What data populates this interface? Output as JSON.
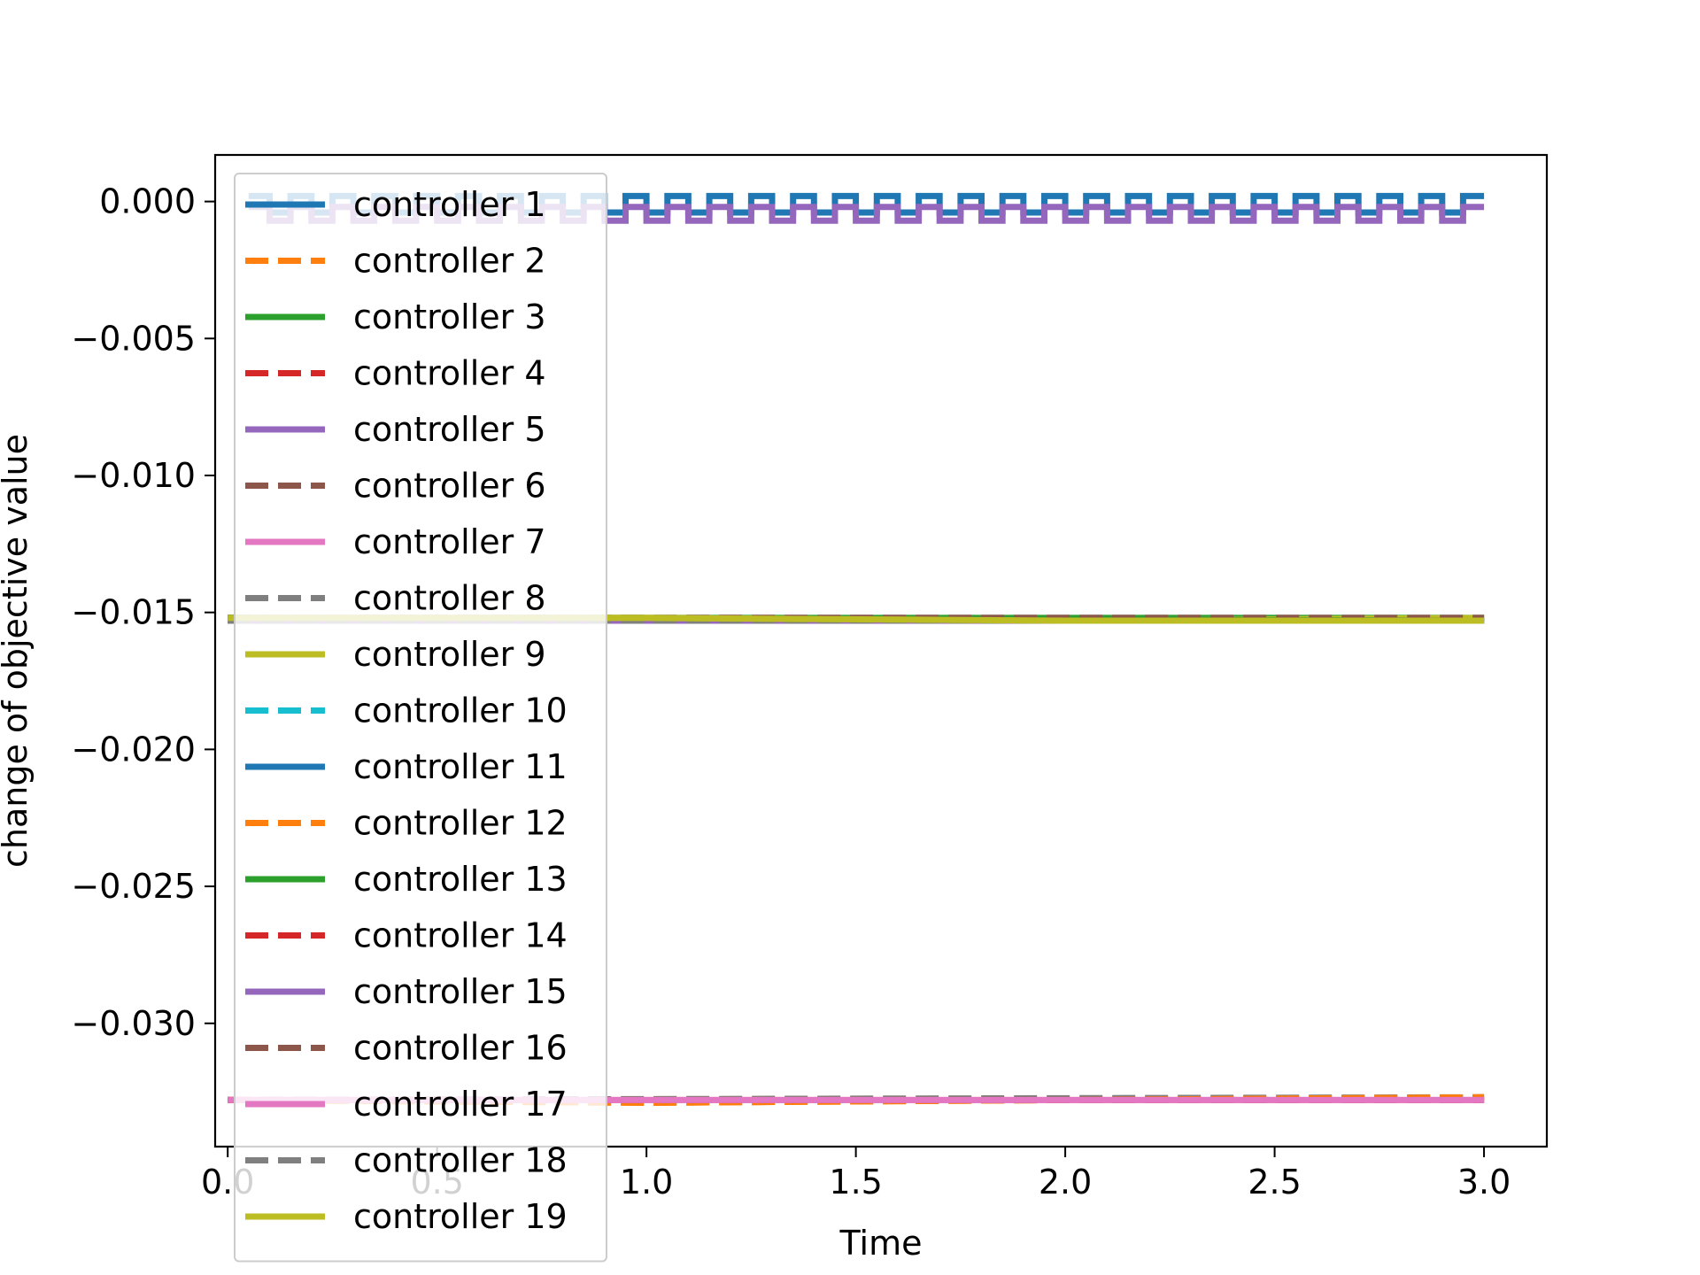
{
  "chart_data": {
    "type": "line",
    "title": "",
    "xlabel": "Time",
    "ylabel": "change of objective value",
    "xlim": [
      -0.03,
      3.15
    ],
    "ylim": [
      -0.0345,
      0.0017
    ],
    "xticks": [
      0.0,
      0.5,
      1.0,
      1.5,
      2.0,
      2.5,
      3.0
    ],
    "xtick_labels": [
      "0.0",
      "0.5",
      "1.0",
      "1.5",
      "2.0",
      "2.5",
      "3.0"
    ],
    "yticks": [
      0.0,
      -0.005,
      -0.01,
      -0.015,
      -0.02,
      -0.025,
      -0.03
    ],
    "ytick_labels": [
      "0.000",
      "−0.005",
      "−0.010",
      "−0.015",
      "−0.020",
      "−0.025",
      "−0.030"
    ],
    "grid": false,
    "legend_position": "upper-left",
    "series": [
      {
        "name": "controller 1",
        "color": "#1f77b4",
        "style": "solid",
        "pattern": "square-wave",
        "x_range": [
          0.05,
          3.0
        ],
        "high": 0.0002,
        "low": -0.0004,
        "period": 0.1
      },
      {
        "name": "controller 2",
        "color": "#ff7f0e",
        "style": "dashed",
        "x": [
          0.0,
          1.0,
          2.0,
          3.0
        ],
        "y": [
          -0.0328,
          -0.0329,
          -0.0328,
          -0.0327
        ]
      },
      {
        "name": "controller 3",
        "color": "#2ca02c",
        "style": "solid",
        "x": [
          0.0,
          3.0
        ],
        "y": [
          -0.0152,
          -0.0152
        ]
      },
      {
        "name": "controller 4",
        "color": "#d62728",
        "style": "dashed",
        "x": [
          0.0,
          3.0
        ],
        "y": [
          -0.0328,
          -0.0328
        ]
      },
      {
        "name": "controller 5",
        "color": "#9467bd",
        "style": "solid",
        "pattern": "square-wave",
        "x_range": [
          0.05,
          3.0
        ],
        "high": -0.0002,
        "low": -0.0007,
        "period": 0.1
      },
      {
        "name": "controller 6",
        "color": "#8c564b",
        "style": "dashed",
        "x": [
          0.0,
          3.0
        ],
        "y": [
          -0.0152,
          -0.0152
        ]
      },
      {
        "name": "controller 7",
        "color": "#e377c2",
        "style": "solid",
        "x": [
          0.0,
          3.0
        ],
        "y": [
          -0.0328,
          -0.0328
        ]
      },
      {
        "name": "controller 8",
        "color": "#7f7f7f",
        "style": "dashed",
        "x": [
          0.0,
          3.0
        ],
        "y": [
          -0.0328,
          -0.0327
        ]
      },
      {
        "name": "controller 9",
        "color": "#bcbd22",
        "style": "solid",
        "x": [
          0.0,
          1.0,
          2.0,
          3.0
        ],
        "y": [
          -0.0152,
          -0.0152,
          -0.0153,
          -0.0152
        ]
      },
      {
        "name": "controller 10",
        "color": "#17becf",
        "style": "dashed",
        "x": [
          0.0,
          3.0
        ],
        "y": [
          -0.0153,
          -0.0153
        ]
      },
      {
        "name": "controller 11",
        "color": "#1f77b4",
        "style": "solid",
        "x": [
          0.0,
          3.0
        ],
        "y": [
          -0.0152,
          -0.0153
        ]
      },
      {
        "name": "controller 12",
        "color": "#ff7f0e",
        "style": "dashed",
        "x": [
          0.0,
          1.0,
          2.0,
          3.0
        ],
        "y": [
          -0.0328,
          -0.0329,
          -0.0328,
          -0.0327
        ]
      },
      {
        "name": "controller 13",
        "color": "#2ca02c",
        "style": "solid",
        "x": [
          0.0,
          3.0
        ],
        "y": [
          -0.0152,
          -0.0153
        ]
      },
      {
        "name": "controller 14",
        "color": "#d62728",
        "style": "dashed",
        "x": [
          0.0,
          3.0
        ],
        "y": [
          -0.0328,
          -0.0328
        ]
      },
      {
        "name": "controller 15",
        "color": "#9467bd",
        "style": "solid",
        "x": [
          0.0,
          3.0
        ],
        "y": [
          -0.0153,
          -0.0153
        ]
      },
      {
        "name": "controller 16",
        "color": "#8c564b",
        "style": "dashed",
        "x": [
          0.0,
          3.0
        ],
        "y": [
          -0.0152,
          -0.0152
        ]
      },
      {
        "name": "controller 17",
        "color": "#e377c2",
        "style": "solid",
        "x": [
          0.0,
          3.0
        ],
        "y": [
          -0.0328,
          -0.0328
        ]
      },
      {
        "name": "controller 18",
        "color": "#7f7f7f",
        "style": "dashed",
        "x": [
          0.0,
          3.0
        ],
        "y": [
          -0.0153,
          -0.0153
        ]
      },
      {
        "name": "controller 19",
        "color": "#bcbd22",
        "style": "solid",
        "x": [
          0.0,
          1.0,
          2.0,
          3.0
        ],
        "y": [
          -0.0152,
          -0.0152,
          -0.0153,
          -0.0153
        ]
      }
    ]
  }
}
